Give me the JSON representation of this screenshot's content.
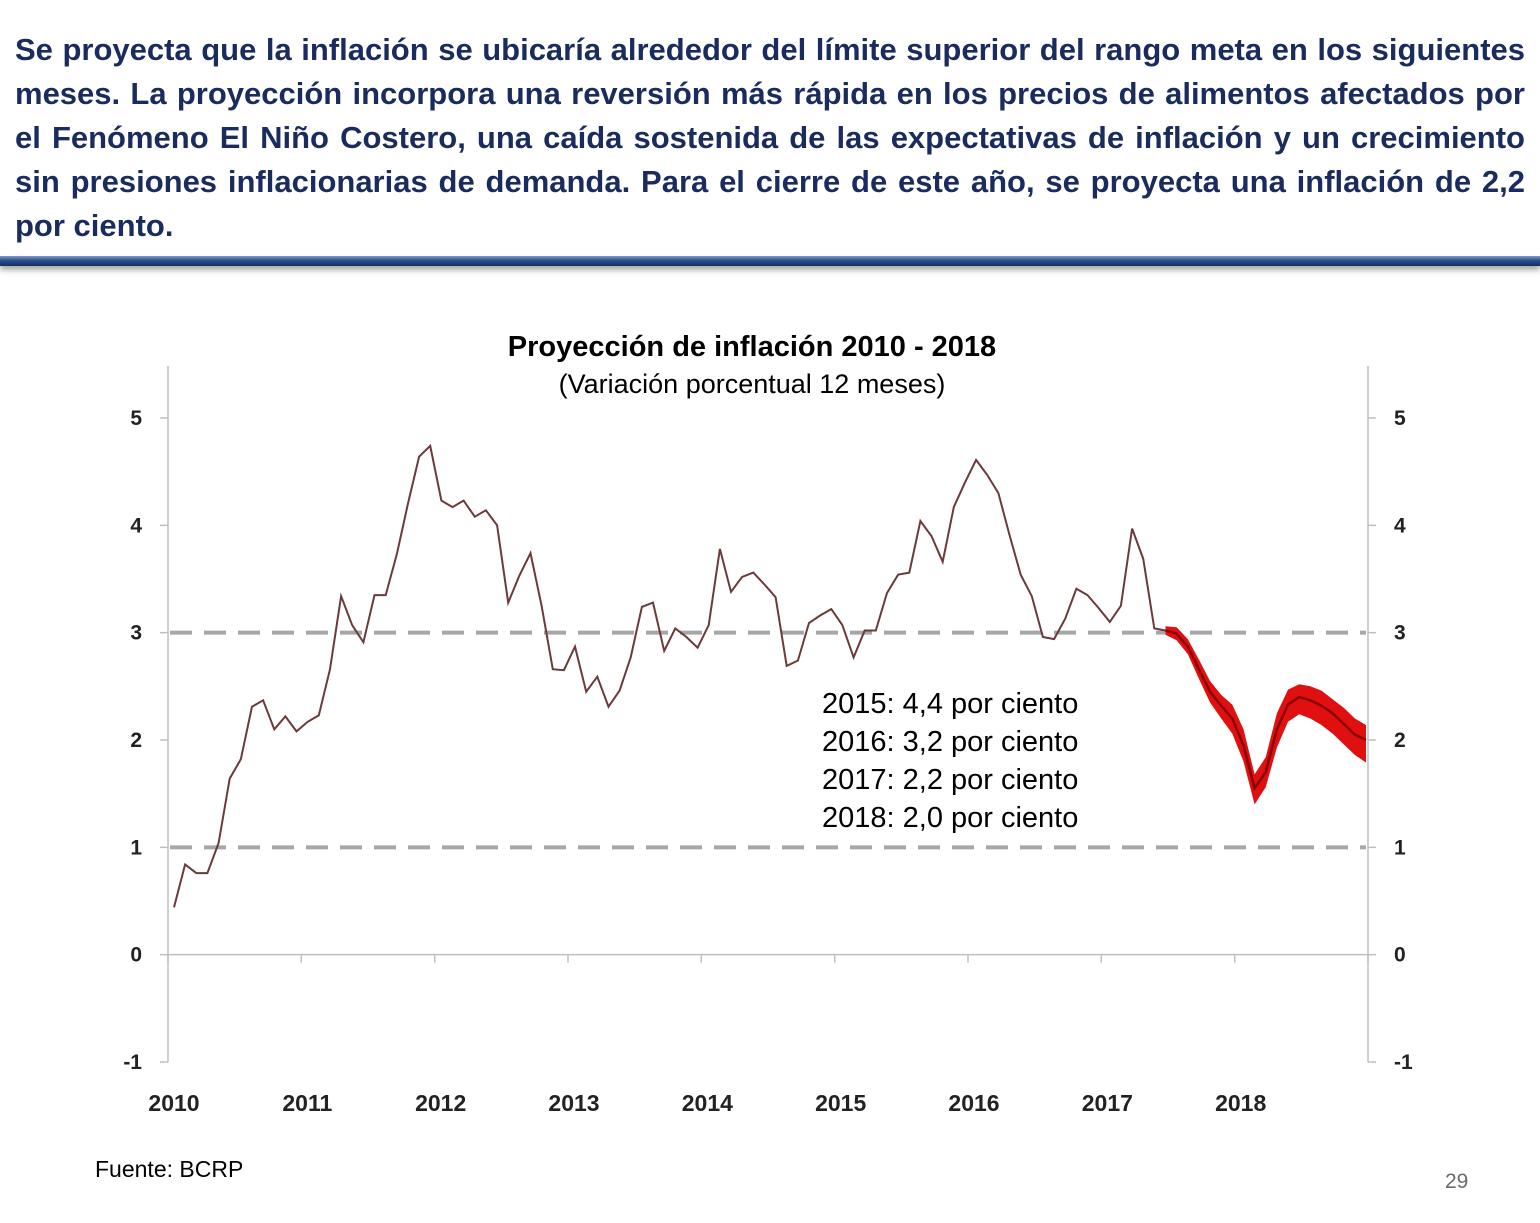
{
  "header": {
    "text": "Se proyecta que la inflación se ubicaría alrededor del límite superior del rango meta en los siguientes meses. La proyección incorpora una reversión más rápida en los precios de alimentos afectados por el Fenómeno El Niño Costero, una caída sostenida de las expectativas de inflación y un crecimiento sin presiones inflacionarias de demanda. Para el cierre de este año, se proyecta una inflación de 2,2 por ciento."
  },
  "footer": {
    "source": "Fuente: BCRP",
    "page_number": "29"
  },
  "colors": {
    "header_text": "#1a2b5e",
    "divider": "#2f4f8a",
    "history_line": "#6b3a3a",
    "projection_band": "#e01010",
    "projection_line": "#8b0000",
    "target_band_lines": "#a6a6a6"
  },
  "chart_data": {
    "type": "line",
    "title": "Proyección de inflación 2010 - 2018",
    "subtitle": "(Variación porcentual 12 meses)",
    "xlabel": "",
    "ylabel": "",
    "ylim": [
      -1,
      5
    ],
    "yticks": [
      -1,
      0,
      1,
      2,
      3,
      4,
      5
    ],
    "xlim": [
      "2010-01",
      "2018-12"
    ],
    "xticks": [
      "2010",
      "2011",
      "2012",
      "2013",
      "2014",
      "2015",
      "2016",
      "2017",
      "2018"
    ],
    "grid": false,
    "legend": "none",
    "reference_lines": [
      {
        "y": 1,
        "style": "dashed"
      },
      {
        "y": 3,
        "style": "dashed"
      }
    ],
    "annotations": [
      "2015: 4,4 por ciento",
      "2016: 3,2 por ciento",
      "2017: 2,2 por ciento",
      "2018: 2,0 por ciento"
    ],
    "series": [
      {
        "kind": "history",
        "x": [
          "2010-01",
          "2010-02",
          "2010-03",
          "2010-04",
          "2010-05",
          "2010-06",
          "2010-07",
          "2010-08",
          "2010-09",
          "2010-10",
          "2010-11",
          "2010-12",
          "2011-01",
          "2011-02",
          "2011-03",
          "2011-04",
          "2011-05",
          "2011-06",
          "2011-07",
          "2011-08",
          "2011-09",
          "2011-10",
          "2011-11",
          "2011-12",
          "2012-01",
          "2012-02",
          "2012-03",
          "2012-04",
          "2012-05",
          "2012-06",
          "2012-07",
          "2012-08",
          "2012-09",
          "2012-10",
          "2012-11",
          "2012-12",
          "2013-01",
          "2013-02",
          "2013-03",
          "2013-04",
          "2013-05",
          "2013-06",
          "2013-07",
          "2013-08",
          "2013-09",
          "2013-10",
          "2013-11",
          "2013-12",
          "2014-01",
          "2014-02",
          "2014-03",
          "2014-04",
          "2014-05",
          "2014-06",
          "2014-07",
          "2014-08",
          "2014-09",
          "2014-10",
          "2014-11",
          "2014-12",
          "2015-01",
          "2015-02",
          "2015-03",
          "2015-04",
          "2015-05",
          "2015-06",
          "2015-07",
          "2015-08",
          "2015-09",
          "2015-10",
          "2015-11",
          "2015-12",
          "2016-01",
          "2016-02",
          "2016-03",
          "2016-04",
          "2016-05",
          "2016-06",
          "2016-07",
          "2016-08",
          "2016-09",
          "2016-10",
          "2016-11",
          "2016-12",
          "2017-01",
          "2017-02",
          "2017-03",
          "2017-04",
          "2017-05",
          "2017-06"
        ],
        "values": [
          0.44,
          0.84,
          0.76,
          0.76,
          1.04,
          1.64,
          1.82,
          2.31,
          2.37,
          2.1,
          2.22,
          2.08,
          2.17,
          2.23,
          2.66,
          3.34,
          3.07,
          2.91,
          3.35,
          3.35,
          3.73,
          4.2,
          4.64,
          4.74,
          4.23,
          4.17,
          4.23,
          4.08,
          4.14,
          4.0,
          3.28,
          3.53,
          3.74,
          3.25,
          2.66,
          2.65,
          2.87,
          2.45,
          2.59,
          2.31,
          2.46,
          2.77,
          3.24,
          3.28,
          2.83,
          3.04,
          2.96,
          2.86,
          3.07,
          3.78,
          3.38,
          3.52,
          3.56,
          3.45,
          3.33,
          2.69,
          2.74,
          3.09,
          3.16,
          3.22,
          3.07,
          2.77,
          3.02,
          3.02,
          3.37,
          3.54,
          3.56,
          4.04,
          3.9,
          3.66,
          4.17,
          4.4,
          4.61,
          4.47,
          4.3,
          3.91,
          3.54,
          3.34,
          2.96,
          2.94,
          3.13,
          3.41,
          3.35,
          3.23,
          3.1,
          3.25,
          3.97,
          3.69,
          3.04,
          3.02
        ]
      },
      {
        "kind": "projection_central",
        "x": [
          "2017-06",
          "2017-07",
          "2017-08",
          "2017-09",
          "2017-10",
          "2017-11",
          "2017-12",
          "2018-01",
          "2018-02",
          "2018-03",
          "2018-04",
          "2018-05",
          "2018-06",
          "2018-07",
          "2018-08",
          "2018-09",
          "2018-10",
          "2018-11",
          "2018-12"
        ],
        "values": [
          3.02,
          2.99,
          2.87,
          2.66,
          2.45,
          2.32,
          2.2,
          1.95,
          1.55,
          1.7,
          2.1,
          2.33,
          2.4,
          2.37,
          2.32,
          2.25,
          2.15,
          2.05,
          2.0
        ]
      },
      {
        "kind": "projection_band",
        "x": [
          "2017-06",
          "2017-07",
          "2017-08",
          "2017-09",
          "2017-10",
          "2017-11",
          "2017-12",
          "2018-01",
          "2018-02",
          "2018-03",
          "2018-04",
          "2018-05",
          "2018-06",
          "2018-07",
          "2018-08",
          "2018-09",
          "2018-10",
          "2018-11",
          "2018-12"
        ],
        "lower": [
          2.98,
          2.93,
          2.8,
          2.57,
          2.35,
          2.2,
          2.06,
          1.8,
          1.4,
          1.56,
          1.93,
          2.17,
          2.24,
          2.2,
          2.14,
          2.06,
          1.96,
          1.86,
          1.79
        ],
        "upper": [
          3.06,
          3.05,
          2.94,
          2.75,
          2.55,
          2.42,
          2.33,
          2.1,
          1.68,
          1.84,
          2.25,
          2.47,
          2.52,
          2.5,
          2.46,
          2.38,
          2.3,
          2.2,
          2.14
        ]
      }
    ]
  }
}
